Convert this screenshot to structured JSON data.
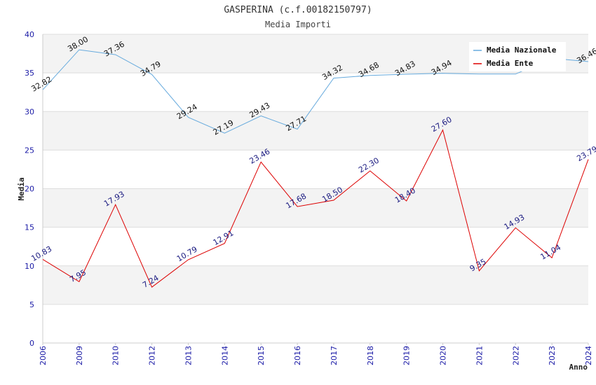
{
  "chart_data": {
    "type": "line",
    "title": "GASPERINA (c.f.00182150797)",
    "subtitle": "Media Importi",
    "xlabel": "Anno",
    "ylabel": "Media",
    "ylim": [
      0,
      40
    ],
    "yticks": [
      0,
      5,
      10,
      15,
      20,
      25,
      30,
      35,
      40
    ],
    "categories": [
      "2006",
      "2009",
      "2010",
      "2012",
      "2013",
      "2014",
      "2015",
      "2016",
      "2017",
      "2018",
      "2019",
      "2020",
      "2021",
      "2022",
      "2023",
      "2024"
    ],
    "series": [
      {
        "name": "Media Nazionale",
        "color": "#66aadd",
        "values": [
          32.82,
          38.0,
          37.36,
          34.79,
          29.24,
          27.19,
          29.43,
          27.71,
          34.32,
          34.68,
          34.83,
          34.94,
          null,
          null,
          null,
          36.46
        ],
        "line_values": [
          32.82,
          38.0,
          37.36,
          34.79,
          29.24,
          27.19,
          29.43,
          27.71,
          34.32,
          34.68,
          34.83,
          34.94,
          34.85,
          34.85,
          36.9,
          36.46
        ],
        "labels": [
          "32.82",
          "38.00",
          "37.36",
          "34.79",
          "29.24",
          "27.19",
          "29.43",
          "27.71",
          "34.32",
          "34.68",
          "34.83",
          "34.94",
          "",
          "",
          "",
          "36.46"
        ]
      },
      {
        "name": "Media Ente",
        "color": "#dd0000",
        "values": [
          10.83,
          7.95,
          17.93,
          7.24,
          10.79,
          12.91,
          23.46,
          17.68,
          18.5,
          22.3,
          18.4,
          27.6,
          9.35,
          14.93,
          11.04,
          23.79
        ],
        "labels": [
          "10.83",
          "7.95",
          "17.93",
          "7.24",
          "10.79",
          "12.91",
          "23.46",
          "17.68",
          "18.50",
          "22.30",
          "18.40",
          "27.60",
          "9.35",
          "14.93",
          "11.04",
          "23.79"
        ]
      }
    ],
    "legend": "top-right",
    "grid": true
  }
}
